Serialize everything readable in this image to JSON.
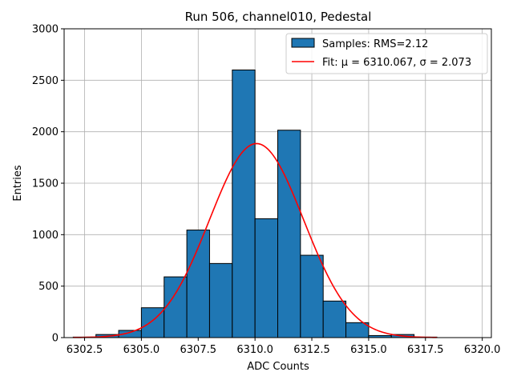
{
  "chart_data": {
    "type": "bar",
    "title": "Run 506, channel010, Pedestal",
    "xlabel": "ADC Counts",
    "ylabel": "Entries",
    "xlim": [
      6301.6,
      6320.4
    ],
    "ylim": [
      0,
      3000
    ],
    "xticks": [
      6302.5,
      6305.0,
      6307.5,
      6310.0,
      6312.5,
      6315.0,
      6317.5,
      6320.0
    ],
    "xtick_labels": [
      "6302.5",
      "6305.0",
      "6307.5",
      "6310.0",
      "6312.5",
      "6315.0",
      "6317.5",
      "6320.0"
    ],
    "yticks": [
      0,
      500,
      1000,
      1500,
      2000,
      2500,
      3000
    ],
    "ytick_labels": [
      "0",
      "500",
      "1000",
      "1500",
      "2000",
      "2500",
      "3000"
    ],
    "grid": true,
    "legend_position": "top-right",
    "bar_color": "#1f77b4",
    "fit_color": "#ff0000",
    "histogram": {
      "name": "Samples: RMS=2.12",
      "bin_edges": [
        6302,
        6303,
        6304,
        6305,
        6306,
        6307,
        6308,
        6309,
        6310,
        6311,
        6312,
        6313,
        6314,
        6315,
        6316,
        6317,
        6318,
        6319,
        6320
      ],
      "counts": [
        5,
        30,
        70,
        290,
        590,
        1045,
        720,
        2600,
        1155,
        2015,
        800,
        355,
        145,
        20,
        30,
        5,
        0,
        0
      ]
    },
    "fit": {
      "name": "Fit: μ = 6310.067, σ = 2.073",
      "mu": 6310.067,
      "sigma": 2.073,
      "amplitude": 1885,
      "x_range": [
        6302,
        6318
      ]
    }
  }
}
